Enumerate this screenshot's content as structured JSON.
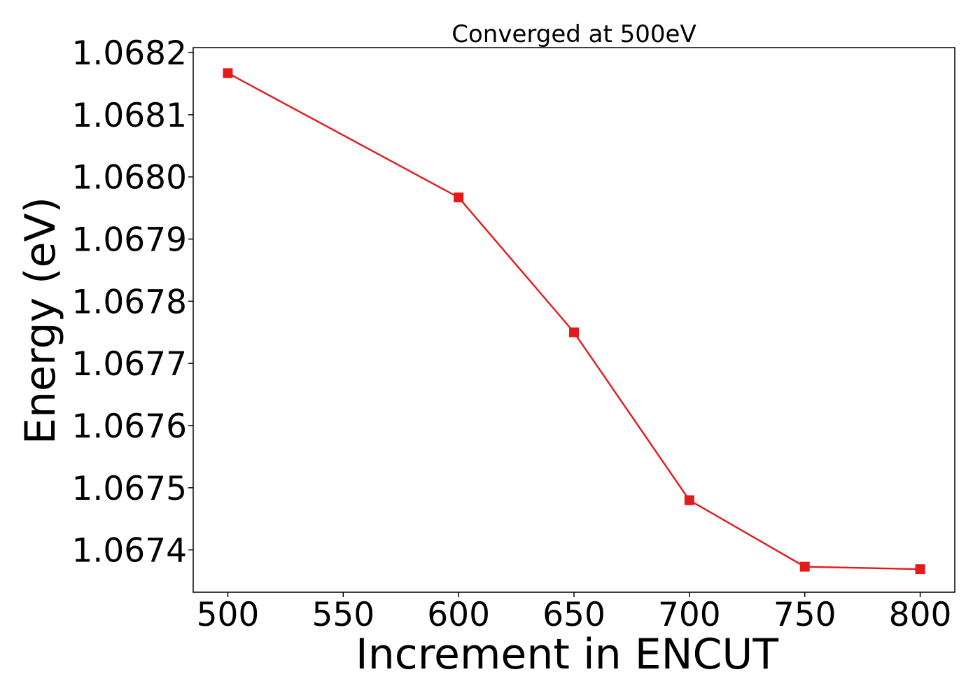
{
  "chart_data": {
    "type": "line",
    "title": "Converged at 500eV",
    "xlabel": "Increment in ENCUT",
    "ylabel": "Energy (eV)",
    "x": [
      500,
      600,
      650,
      700,
      750,
      800
    ],
    "series": [
      {
        "values": [
          1.068167,
          1.067967,
          1.06775,
          1.06748,
          1.067373,
          1.067369
        ],
        "color": "#e31a1c",
        "marker": "square"
      }
    ],
    "xlim": [
      485,
      815
    ],
    "ylim": [
      1.067332,
      1.068208
    ],
    "xticks": [
      500,
      550,
      600,
      650,
      700,
      750,
      800
    ],
    "xtick_labels": [
      "500",
      "550",
      "600",
      "650",
      "700",
      "750",
      "800"
    ],
    "yticks": [
      1.0674,
      1.0675,
      1.0676,
      1.0677,
      1.0678,
      1.0679,
      1.068,
      1.0681,
      1.0682
    ],
    "ytick_labels": [
      "1.0674",
      "1.0675",
      "1.0676",
      "1.0677",
      "1.0678",
      "1.0679",
      "1.0680",
      "1.0681",
      "1.0682"
    ],
    "grid": false
  }
}
